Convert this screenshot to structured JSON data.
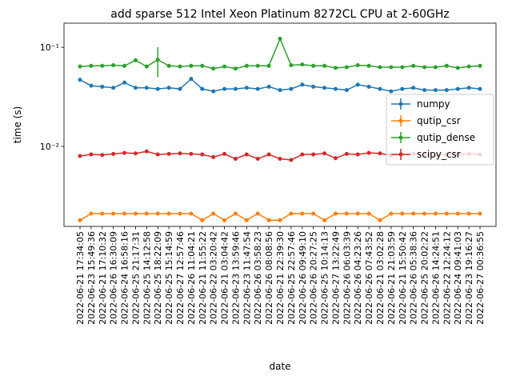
{
  "chart_data": {
    "type": "line",
    "title": "add sparse 512 Intel Xeon Platinum 8272CL CPU at 2-60GHz",
    "xlabel": "date",
    "ylabel": "time (s)",
    "log_y": true,
    "legend": "center right",
    "categories": [
      "2022-06-21 17:34:05",
      "2022-06-23 15:49:36",
      "2022-06-21 17:10:32",
      "2022-06-26 16:30:09",
      "2022-06-24 16:58:16",
      "2022-06-25 21:17:31",
      "2022-06-25 14:12:58",
      "2022-06-25 18:22:09",
      "2022-06-25 15:14:59",
      "2022-06-27 12:57:46",
      "2022-06-26 11:04:21",
      "2022-06-21 11:55:22",
      "2022-06-22 03:20:42",
      "2022-06-21 03:04:42",
      "2022-06-23 13:59:46",
      "2022-06-23 11:47:54",
      "2022-06-26 03:58:23",
      "2022-06-26 08:08:56",
      "2022-06-21 22:39:30",
      "2022-06-25 22:57:46",
      "2022-06-26 09:49:10",
      "2022-06-26 20:27:25",
      "2022-06-25 10:14:13",
      "2022-06-27 13:22:49",
      "2022-06-26 06:03:39",
      "2022-06-26 04:23:26",
      "2022-06-26 07:43:52",
      "2022-06-21 03:02:28",
      "2022-06-21 21:03:59",
      "2022-06-21 15:50:42",
      "2022-06-26 05:38:36",
      "2022-06-25 20:02:22",
      "2022-06-26 14:24:51",
      "2022-06-22 12:24:12",
      "2022-06-24 09:41:03",
      "2022-06-23 19:16:27",
      "2022-06-27 00:36:55"
    ],
    "series": [
      {
        "name": "numpy",
        "color": "#1f77b4",
        "values": [
          0.047,
          0.041,
          0.04,
          0.039,
          0.044,
          0.039,
          0.039,
          0.038,
          0.039,
          0.038,
          0.048,
          0.038,
          0.036,
          0.038,
          0.038,
          0.039,
          0.038,
          0.04,
          0.037,
          0.038,
          0.042,
          0.04,
          0.039,
          0.038,
          0.037,
          0.042,
          0.04,
          0.038,
          0.036,
          0.038,
          0.039,
          0.037,
          0.037,
          0.037,
          0.038,
          0.039,
          0.038
        ]
      },
      {
        "name": "qutip_csr",
        "color": "#ff7f0e",
        "values": [
          0.0018,
          0.0021,
          0.0021,
          0.0021,
          0.0021,
          0.0021,
          0.0021,
          0.0021,
          0.0021,
          0.0021,
          0.0021,
          0.0018,
          0.0021,
          0.0018,
          0.0021,
          0.0018,
          0.0021,
          0.0018,
          0.0018,
          0.0021,
          0.0021,
          0.0021,
          0.0018,
          0.0021,
          0.0021,
          0.0021,
          0.0021,
          0.0018,
          0.0021,
          0.0021,
          0.0021,
          0.0021,
          0.0021,
          0.0021,
          0.0021,
          0.0021,
          0.0021
        ]
      },
      {
        "name": "qutip_dense",
        "color": "#2ca02c",
        "values": [
          0.064,
          0.065,
          0.065,
          0.066,
          0.065,
          0.074,
          0.064,
          0.075,
          0.065,
          0.064,
          0.065,
          0.065,
          0.061,
          0.064,
          0.061,
          0.065,
          0.065,
          0.065,
          0.122,
          0.066,
          0.067,
          0.065,
          0.065,
          0.062,
          0.063,
          0.066,
          0.065,
          0.063,
          0.063,
          0.063,
          0.065,
          0.063,
          0.063,
          0.065,
          0.062,
          0.064,
          0.065
        ],
        "errors": [
          0,
          0,
          0,
          0,
          0,
          0,
          0,
          0.025,
          0,
          0,
          0,
          0,
          0,
          0,
          0,
          0,
          0,
          0,
          0,
          0,
          0,
          0,
          0,
          0,
          0,
          0,
          0,
          0,
          0,
          0,
          0,
          0,
          0,
          0,
          0,
          0,
          0
        ]
      },
      {
        "name": "scipy_csr",
        "color": "#d62728",
        "values": [
          0.008,
          0.0083,
          0.0082,
          0.0084,
          0.0086,
          0.0085,
          0.0089,
          0.0083,
          0.0084,
          0.0085,
          0.0084,
          0.0083,
          0.0078,
          0.0084,
          0.0075,
          0.0083,
          0.0075,
          0.0083,
          0.0075,
          0.0073,
          0.0083,
          0.0083,
          0.0085,
          0.0076,
          0.0084,
          0.0083,
          0.0086,
          0.0085,
          0.0081,
          0.0083,
          0.0084,
          0.0083,
          0.0082,
          0.0083,
          0.0083,
          0.0084,
          0.0083
        ]
      }
    ],
    "ylim": [
      0.00156,
      0.175
    ],
    "yticks": [
      {
        "value": 0.01,
        "label": "10⁻²"
      },
      {
        "value": 0.1,
        "label": "10⁻¹"
      }
    ]
  }
}
